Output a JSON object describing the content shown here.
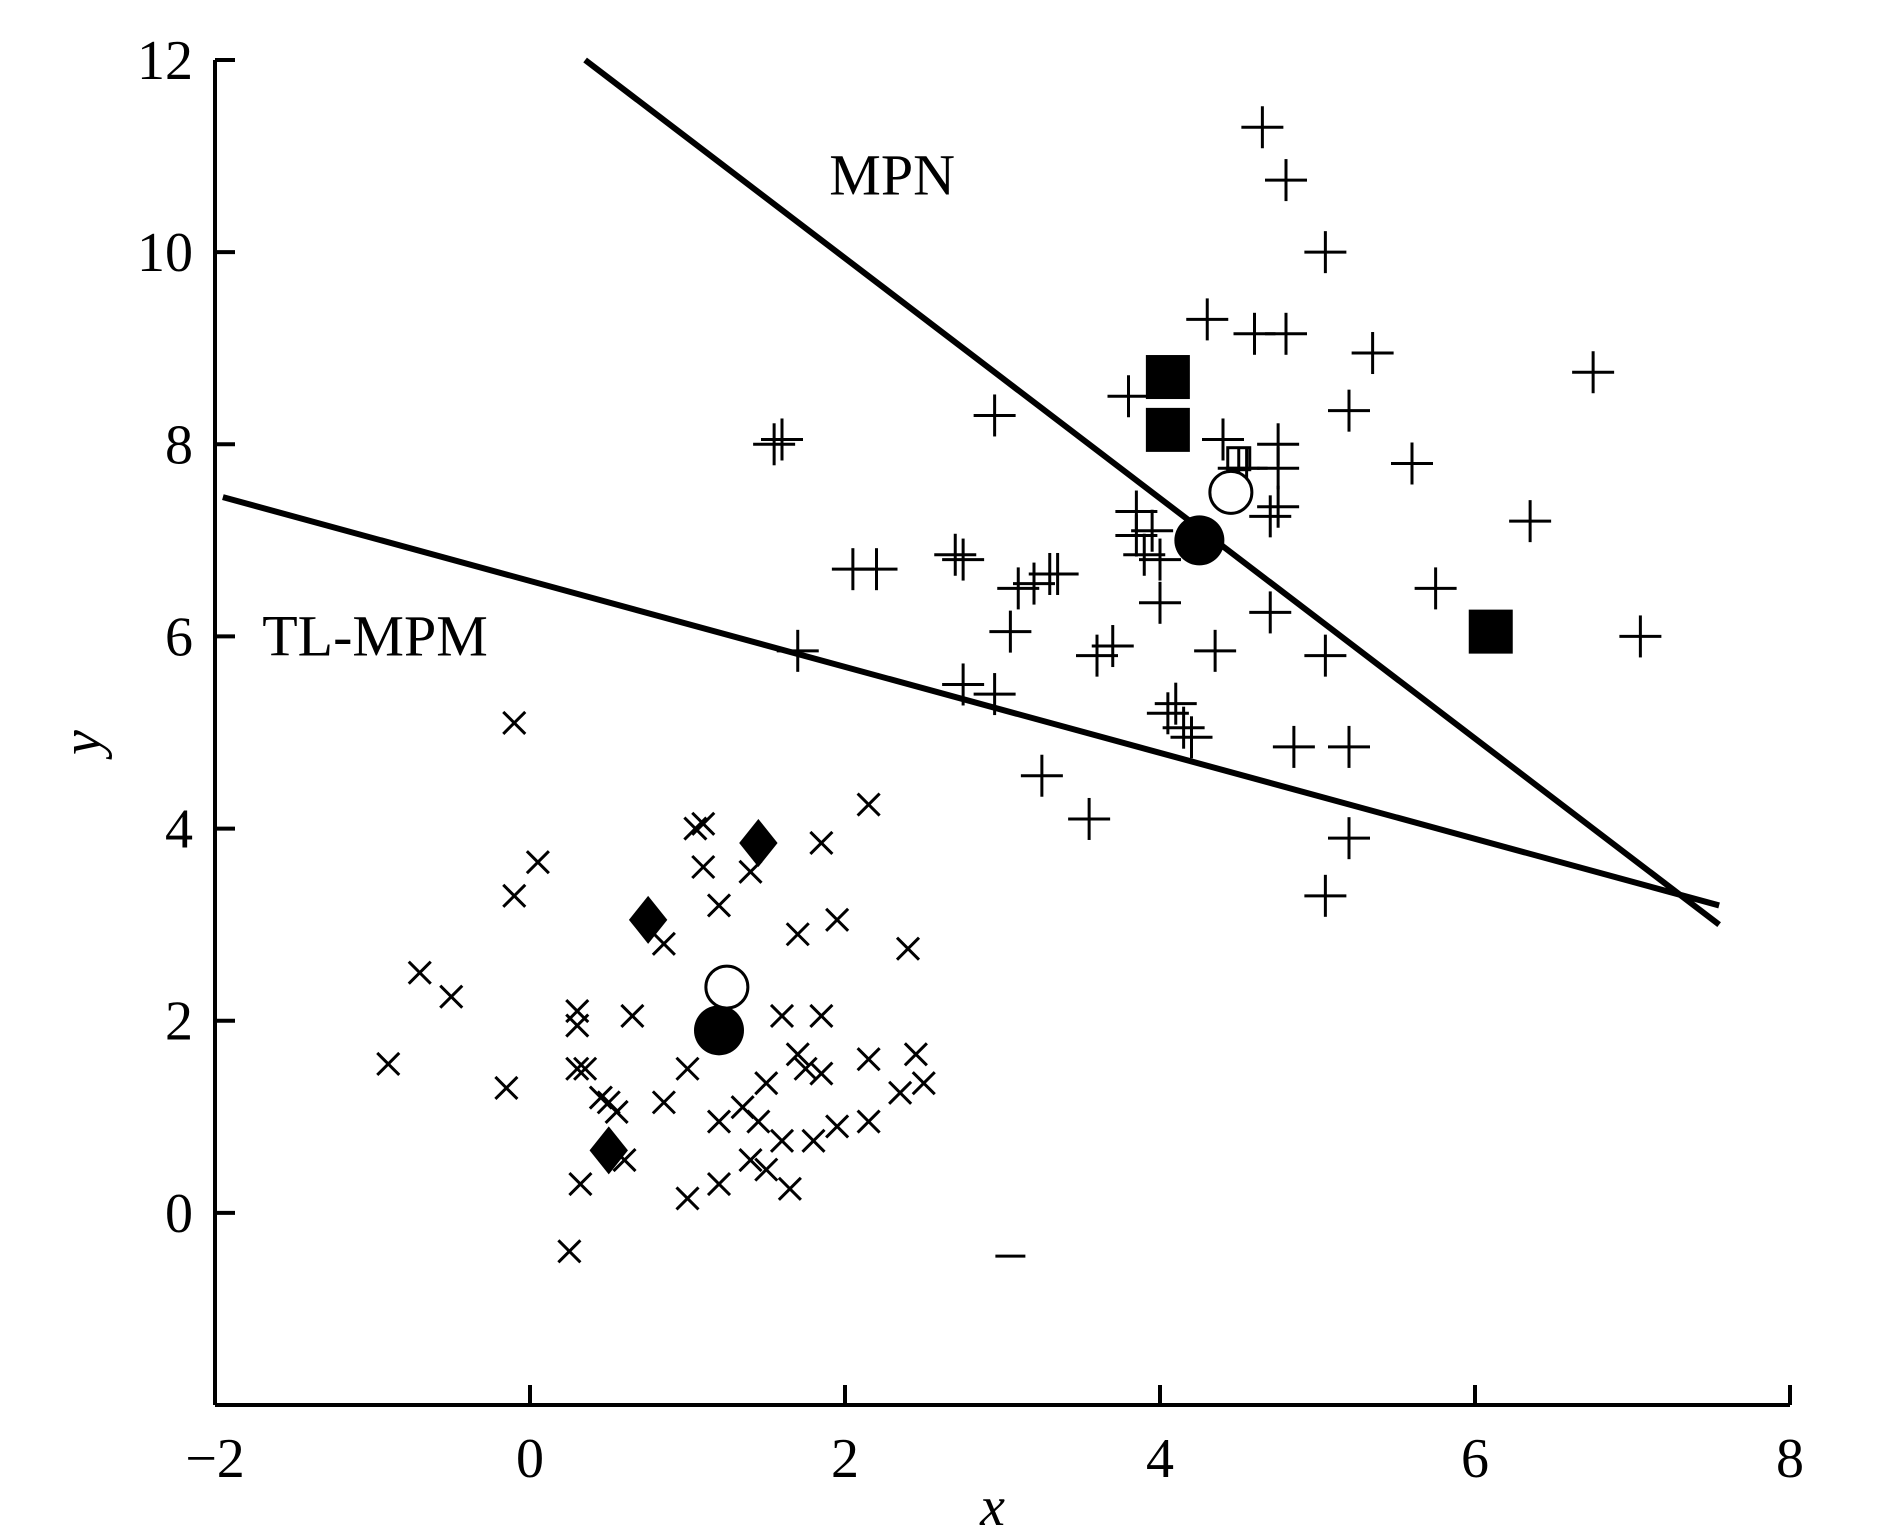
{
  "chart_data": {
    "type": "scatter",
    "title": "",
    "xlabel": "x",
    "ylabel": "y",
    "xlim": [
      -2,
      8
    ],
    "ylim": [
      -2,
      12
    ],
    "x_ticks": [
      "−2",
      "0",
      "2",
      "4",
      "6",
      "8"
    ],
    "y_ticks": [
      "0",
      "2",
      "4",
      "6",
      "8",
      "10",
      "12"
    ],
    "x_tick_values": [
      -2,
      0,
      2,
      4,
      6,
      8
    ],
    "y_tick_values": [
      0,
      2,
      4,
      6,
      8,
      10,
      12
    ],
    "grid": false,
    "legend": "none",
    "series": [
      {
        "marker": "x",
        "points": [
          [
            -0.9,
            1.55
          ],
          [
            -0.7,
            2.5
          ],
          [
            -0.5,
            2.25
          ],
          [
            -0.15,
            1.3
          ],
          [
            -0.1,
            3.3
          ],
          [
            -0.1,
            5.1
          ],
          [
            0.05,
            3.65
          ],
          [
            0.25,
            -0.4
          ],
          [
            0.3,
            2.1
          ],
          [
            0.3,
            1.95
          ],
          [
            0.3,
            1.5
          ],
          [
            0.32,
            0.3
          ],
          [
            0.35,
            1.5
          ],
          [
            0.45,
            1.2
          ],
          [
            0.5,
            1.15
          ],
          [
            0.55,
            1.05
          ],
          [
            0.6,
            0.55
          ],
          [
            0.65,
            2.05
          ],
          [
            0.85,
            2.8
          ],
          [
            0.85,
            1.15
          ],
          [
            1.0,
            1.5
          ],
          [
            1.0,
            0.15
          ],
          [
            1.05,
            4.0
          ],
          [
            1.1,
            4.05
          ],
          [
            1.1,
            3.6
          ],
          [
            1.2,
            3.2
          ],
          [
            1.2,
            0.95
          ],
          [
            1.2,
            0.3
          ],
          [
            1.35,
            1.1
          ],
          [
            1.4,
            0.55
          ],
          [
            1.4,
            3.55
          ],
          [
            1.45,
            0.95
          ],
          [
            1.5,
            1.35
          ],
          [
            1.5,
            0.45
          ],
          [
            1.6,
            2.05
          ],
          [
            1.6,
            0.75
          ],
          [
            1.65,
            0.25
          ],
          [
            1.7,
            2.9
          ],
          [
            1.7,
            1.65
          ],
          [
            1.75,
            1.5
          ],
          [
            1.8,
            0.75
          ],
          [
            1.85,
            3.85
          ],
          [
            1.85,
            2.05
          ],
          [
            1.85,
            1.45
          ],
          [
            1.95,
            3.05
          ],
          [
            1.95,
            0.9
          ],
          [
            2.15,
            0.95
          ],
          [
            2.15,
            1.6
          ],
          [
            2.15,
            4.25
          ],
          [
            2.35,
            1.25
          ],
          [
            2.4,
            2.75
          ],
          [
            2.45,
            1.65
          ],
          [
            2.5,
            1.35
          ]
        ]
      },
      {
        "marker": "plus",
        "points": [
          [
            1.55,
            8.0
          ],
          [
            1.6,
            8.05
          ],
          [
            1.7,
            5.85
          ],
          [
            2.05,
            6.7
          ],
          [
            2.2,
            6.7
          ],
          [
            2.7,
            6.85
          ],
          [
            2.75,
            6.8
          ],
          [
            2.75,
            5.5
          ],
          [
            2.95,
            8.3
          ],
          [
            2.95,
            5.4
          ],
          [
            3.05,
            6.05
          ],
          [
            3.1,
            6.5
          ],
          [
            3.2,
            6.55
          ],
          [
            3.25,
            4.55
          ],
          [
            3.3,
            6.65
          ],
          [
            3.35,
            6.65
          ],
          [
            3.55,
            4.1
          ],
          [
            3.6,
            5.8
          ],
          [
            3.7,
            5.9
          ],
          [
            3.8,
            8.5
          ],
          [
            3.85,
            7.3
          ],
          [
            3.85,
            7.05
          ],
          [
            3.9,
            6.85
          ],
          [
            3.95,
            7.1
          ],
          [
            4.0,
            6.8
          ],
          [
            4.0,
            6.35
          ],
          [
            4.05,
            5.2
          ],
          [
            4.1,
            5.3
          ],
          [
            4.15,
            5.05
          ],
          [
            4.2,
            4.95
          ],
          [
            4.3,
            9.3
          ],
          [
            4.35,
            5.85
          ],
          [
            4.4,
            8.05
          ],
          [
            4.5,
            7.75
          ],
          [
            4.55,
            7.75
          ],
          [
            4.6,
            9.15
          ],
          [
            4.65,
            11.3
          ],
          [
            4.7,
            7.25
          ],
          [
            4.7,
            6.25
          ],
          [
            4.75,
            8.0
          ],
          [
            4.75,
            7.75
          ],
          [
            4.75,
            7.35
          ],
          [
            4.8,
            10.75
          ],
          [
            4.8,
            9.15
          ],
          [
            4.85,
            4.85
          ],
          [
            5.05,
            10.0
          ],
          [
            5.05,
            5.8
          ],
          [
            5.05,
            3.3
          ],
          [
            5.2,
            8.35
          ],
          [
            5.2,
            4.85
          ],
          [
            5.2,
            3.9
          ],
          [
            5.35,
            8.95
          ],
          [
            5.6,
            7.8
          ],
          [
            5.75,
            6.5
          ],
          [
            6.35,
            7.2
          ],
          [
            6.75,
            8.75
          ],
          [
            7.05,
            6.0
          ]
        ]
      },
      {
        "marker": "filled-diamond",
        "points": [
          [
            0.5,
            0.65
          ],
          [
            0.75,
            3.05
          ],
          [
            1.45,
            3.85
          ]
        ]
      },
      {
        "marker": "filled-square",
        "points": [
          [
            4.05,
            8.7
          ],
          [
            4.05,
            8.15
          ],
          [
            6.1,
            6.05
          ]
        ]
      },
      {
        "marker": "filled-circle",
        "points": [
          [
            1.2,
            1.9
          ],
          [
            4.25,
            7.0
          ]
        ]
      },
      {
        "marker": "open-circle",
        "points": [
          [
            1.25,
            2.35
          ],
          [
            4.45,
            7.5
          ]
        ]
      },
      {
        "marker": "open-square",
        "points": [
          [
            4.5,
            7.85
          ]
        ]
      },
      {
        "marker": "dash",
        "points": [
          [
            3.05,
            -0.45
          ]
        ]
      }
    ],
    "lines": [
      {
        "name": "MPN",
        "from": [
          0.35,
          12.0
        ],
        "to": [
          7.55,
          3.0
        ]
      },
      {
        "name": "TL-MPM",
        "from": [
          -1.95,
          7.45
        ],
        "to": [
          7.55,
          3.2
        ]
      }
    ],
    "annotations": [
      {
        "text": "MPN",
        "at": [
          1.9,
          10.6
        ]
      },
      {
        "text": "TL-MPM",
        "at": [
          -1.7,
          5.8
        ]
      }
    ]
  }
}
